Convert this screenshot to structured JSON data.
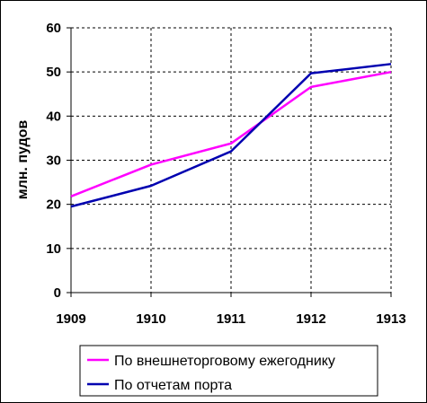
{
  "chart_data": {
    "type": "line",
    "x": [
      "1909",
      "1910",
      "1911",
      "1912",
      "1913"
    ],
    "ylabel": "млн. пудов",
    "xlabel": "",
    "title": "",
    "ylim": [
      0,
      60
    ],
    "yticks": [
      0,
      10,
      20,
      30,
      40,
      50,
      60
    ],
    "grid": true,
    "legend_position": "bottom-right",
    "series": [
      {
        "name": "По внешнеторговому ежегоднику",
        "color": "#ff00ff",
        "values": [
          21.8,
          29,
          33.8,
          46.6,
          50
        ]
      },
      {
        "name": "По отчетам порта",
        "color": "#0000b0",
        "values": [
          19.5,
          24.2,
          32,
          49.7,
          51.8
        ]
      }
    ]
  }
}
